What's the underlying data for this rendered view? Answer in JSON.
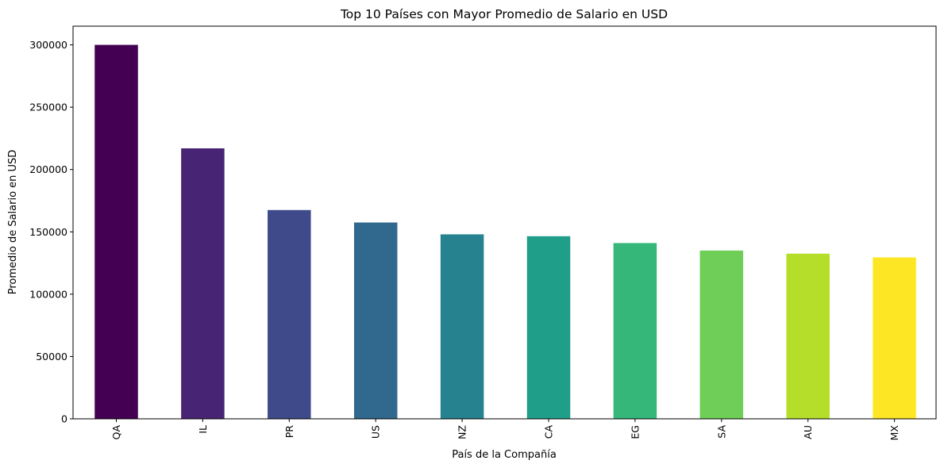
{
  "chart_data": {
    "type": "bar",
    "title": "Top 10 Países con Mayor Promedio de Salario en USD",
    "xlabel": "País de la Compañía",
    "ylabel": "Promedio de Salario en USD",
    "categories": [
      "QA",
      "IL",
      "PR",
      "US",
      "NZ",
      "CA",
      "EG",
      "SA",
      "AU",
      "MX"
    ],
    "values": [
      300000,
      217000,
      167500,
      157500,
      148000,
      146500,
      141000,
      135000,
      132500,
      129500
    ],
    "colors": [
      "#440154",
      "#482475",
      "#3e4a89",
      "#31688e",
      "#26828e",
      "#1f9e89",
      "#35b779",
      "#6ece58",
      "#b5de2b",
      "#fde725"
    ],
    "ylim": [
      0,
      315000
    ],
    "yticks": [
      0,
      50000,
      100000,
      150000,
      200000,
      250000,
      300000
    ],
    "ytick_labels": [
      "0",
      "50000",
      "100000",
      "150000",
      "200000",
      "250000",
      "300000"
    ],
    "grid": false,
    "legend": "none"
  }
}
